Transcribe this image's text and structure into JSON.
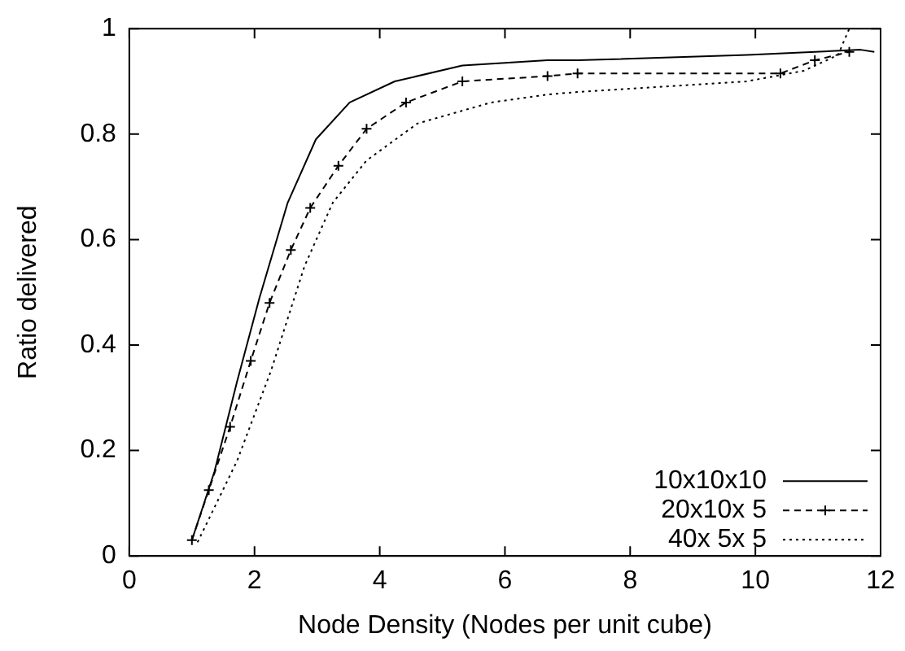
{
  "chart_data": {
    "type": "line",
    "xlabel": "Node Density (Nodes per unit cube)",
    "ylabel": "Ratio delivered",
    "xlim": [
      0,
      12
    ],
    "xticks": [
      0,
      2,
      4,
      6,
      8,
      10,
      12
    ],
    "ylim": [
      0,
      1
    ],
    "yticks": [
      0,
      0.2,
      0.4,
      0.6,
      0.8,
      1
    ],
    "grid": false,
    "legend": "bottom right",
    "series": [
      {
        "name": "10x10x10",
        "color": "#000000",
        "line_style": "solid",
        "marker": "none",
        "x": [
          1.0,
          1.36,
          1.72,
          2.08,
          2.53,
          2.98,
          3.52,
          4.24,
          5.32,
          6.68,
          7.17,
          9.87,
          11.68,
          11.9
        ],
        "values": [
          0.03,
          0.16,
          0.33,
          0.49,
          0.67,
          0.79,
          0.86,
          0.9,
          0.93,
          0.94,
          0.94,
          0.95,
          0.96,
          0.956
        ]
      },
      {
        "name": "20x10x 5",
        "color": "#000000",
        "line_style": "dashed",
        "marker": "cross",
        "x": [
          1.0,
          1.27,
          1.61,
          1.94,
          2.24,
          2.58,
          2.89,
          3.34,
          3.79,
          4.42,
          5.32,
          6.68,
          7.16,
          10.4,
          10.95,
          11.5
        ],
        "values": [
          0.03,
          0.125,
          0.245,
          0.37,
          0.48,
          0.58,
          0.66,
          0.74,
          0.81,
          0.86,
          0.9,
          0.91,
          0.915,
          0.915,
          0.94,
          0.956
        ]
      },
      {
        "name": "40x 5x 5",
        "color": "#000000",
        "line_style": "dotted",
        "marker": "none",
        "x": [
          1.09,
          1.72,
          2.26,
          2.8,
          3.25,
          3.79,
          4.6,
          5.78,
          6.68,
          7.16,
          9.86,
          10.77,
          11.32,
          11.5
        ],
        "values": [
          0.026,
          0.18,
          0.35,
          0.55,
          0.67,
          0.75,
          0.82,
          0.86,
          0.875,
          0.88,
          0.9,
          0.92,
          0.95,
          1.0
        ]
      }
    ]
  }
}
